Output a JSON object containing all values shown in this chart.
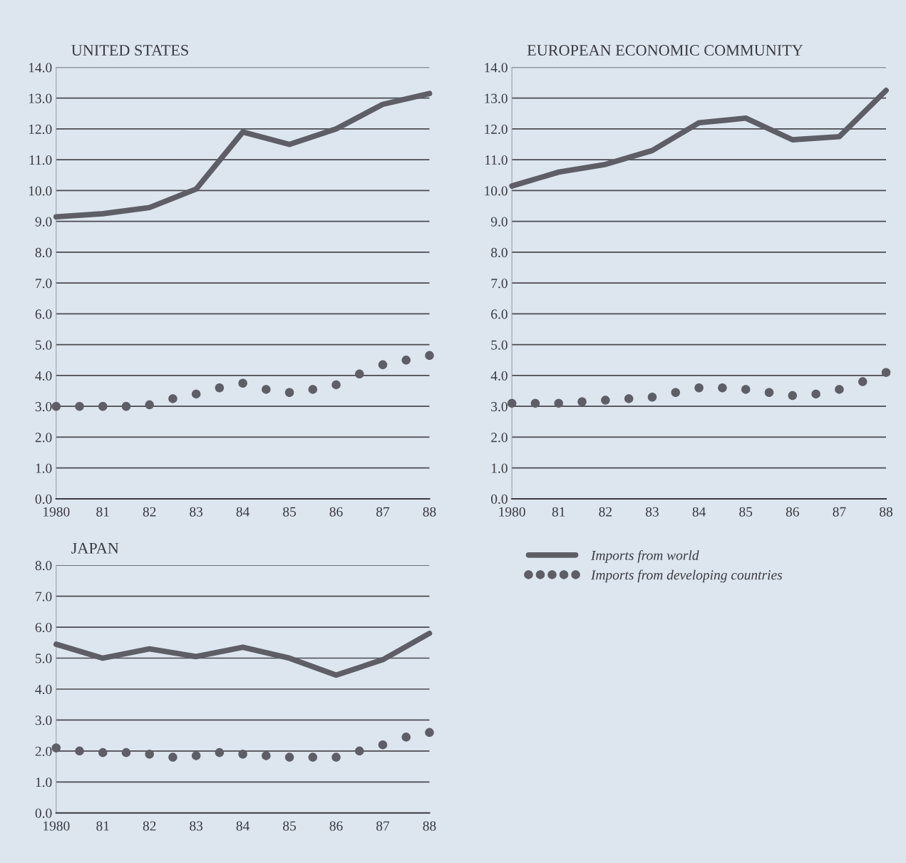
{
  "chart_data": [
    {
      "type": "line",
      "title": "UNITED STATES",
      "xlim": [
        1980,
        1988
      ],
      "xticks": [
        {
          "value": 1980,
          "label": "1980"
        },
        {
          "value": 1981,
          "label": "81"
        },
        {
          "value": 1982,
          "label": "82"
        },
        {
          "value": 1983,
          "label": "83"
        },
        {
          "value": 1984,
          "label": "84"
        },
        {
          "value": 1985,
          "label": "85"
        },
        {
          "value": 1986,
          "label": "86"
        },
        {
          "value": 1987,
          "label": "87"
        },
        {
          "value": 1988,
          "label": "88"
        }
      ],
      "ylim": [
        0,
        14
      ],
      "yticks": [
        {
          "value": 0,
          "label": "0.0"
        },
        {
          "value": 1,
          "label": "1.0"
        },
        {
          "value": 2,
          "label": "2.0"
        },
        {
          "value": 3,
          "label": "3.0"
        },
        {
          "value": 4,
          "label": "4.0"
        },
        {
          "value": 5,
          "label": "5.0"
        },
        {
          "value": 6,
          "label": "6.0"
        },
        {
          "value": 7,
          "label": "7.0"
        },
        {
          "value": 8,
          "label": "8.0"
        },
        {
          "value": 9,
          "label": "9.0"
        },
        {
          "value": 10,
          "label": "10.0"
        },
        {
          "value": 11,
          "label": "11.0"
        },
        {
          "value": 12,
          "label": "12.0"
        },
        {
          "value": 13,
          "label": "13.0"
        },
        {
          "value": 14,
          "label": "14.0"
        }
      ],
      "grid": "y",
      "legend": false,
      "series": [
        {
          "color": "#5e5e66",
          "line_style": "solid",
          "x": [
            1980,
            1981,
            1982,
            1983,
            1984,
            1985,
            1986,
            1987,
            1988
          ],
          "values": [
            9.15,
            9.25,
            9.45,
            10.05,
            11.9,
            11.5,
            12.0,
            12.8,
            13.15
          ]
        },
        {
          "type": "scatter",
          "marker": "circle",
          "color": "#5e5e66",
          "x": [
            1980,
            1980.5,
            1981,
            1981.5,
            1982,
            1982.5,
            1983,
            1983.5,
            1984,
            1984.5,
            1985,
            1985.5,
            1986,
            1986.5,
            1987,
            1987.5,
            1988
          ],
          "values": [
            3.0,
            3.0,
            3.0,
            3.0,
            3.05,
            3.25,
            3.4,
            3.6,
            3.75,
            3.55,
            3.45,
            3.55,
            3.7,
            4.05,
            4.35,
            4.5,
            4.65
          ]
        }
      ]
    },
    {
      "type": "line",
      "title": "EUROPEAN ECONOMIC COMMUNITY",
      "xlim": [
        1980,
        1988
      ],
      "xticks": [
        {
          "value": 1980,
          "label": "1980"
        },
        {
          "value": 1981,
          "label": "81"
        },
        {
          "value": 1982,
          "label": "82"
        },
        {
          "value": 1983,
          "label": "83"
        },
        {
          "value": 1984,
          "label": "84"
        },
        {
          "value": 1985,
          "label": "85"
        },
        {
          "value": 1986,
          "label": "86"
        },
        {
          "value": 1987,
          "label": "87"
        },
        {
          "value": 1988,
          "label": "88"
        }
      ],
      "ylim": [
        0,
        14
      ],
      "yticks": [
        {
          "value": 0,
          "label": "0.0"
        },
        {
          "value": 1,
          "label": "1.0"
        },
        {
          "value": 2,
          "label": "2.0"
        },
        {
          "value": 3,
          "label": "3.0"
        },
        {
          "value": 4,
          "label": "4.0"
        },
        {
          "value": 5,
          "label": "5.0"
        },
        {
          "value": 6,
          "label": "6.0"
        },
        {
          "value": 7,
          "label": "7.0"
        },
        {
          "value": 8,
          "label": "8.0"
        },
        {
          "value": 9,
          "label": "9.0"
        },
        {
          "value": 10,
          "label": "10.0"
        },
        {
          "value": 11,
          "label": "11.0"
        },
        {
          "value": 12,
          "label": "12.0"
        },
        {
          "value": 13,
          "label": "13.0"
        },
        {
          "value": 14,
          "label": "14.0"
        }
      ],
      "grid": "y",
      "legend": "bottom",
      "series": [
        {
          "name": "Imports from world",
          "color": "#5e5e66",
          "line_style": "solid",
          "x": [
            1980,
            1981,
            1982,
            1983,
            1984,
            1985,
            1986,
            1987,
            1988
          ],
          "values": [
            10.15,
            10.6,
            10.85,
            11.3,
            12.2,
            12.35,
            11.65,
            11.75,
            13.25
          ]
        },
        {
          "name": "Imports from developing countries",
          "type": "scatter",
          "marker": "circle",
          "color": "#5e5e66",
          "x": [
            1980,
            1980.5,
            1981,
            1981.5,
            1982,
            1982.5,
            1983,
            1983.5,
            1984,
            1984.5,
            1985,
            1985.5,
            1986,
            1986.5,
            1987,
            1987.5,
            1988
          ],
          "values": [
            3.1,
            3.1,
            3.1,
            3.15,
            3.2,
            3.25,
            3.3,
            3.45,
            3.6,
            3.6,
            3.55,
            3.45,
            3.35,
            3.4,
            3.55,
            3.8,
            4.1
          ]
        }
      ]
    },
    {
      "type": "line",
      "title": "JAPAN",
      "xlim": [
        1980,
        1988
      ],
      "xticks": [
        {
          "value": 1980,
          "label": "1980"
        },
        {
          "value": 1981,
          "label": "81"
        },
        {
          "value": 1982,
          "label": "82"
        },
        {
          "value": 1983,
          "label": "83"
        },
        {
          "value": 1984,
          "label": "84"
        },
        {
          "value": 1985,
          "label": "85"
        },
        {
          "value": 1986,
          "label": "86"
        },
        {
          "value": 1987,
          "label": "87"
        },
        {
          "value": 1988,
          "label": "88"
        }
      ],
      "ylim": [
        0,
        8
      ],
      "yticks": [
        {
          "value": 0,
          "label": "0.0"
        },
        {
          "value": 1,
          "label": "1.0"
        },
        {
          "value": 2,
          "label": "2.0"
        },
        {
          "value": 3,
          "label": "3.0"
        },
        {
          "value": 4,
          "label": "4.0"
        },
        {
          "value": 5,
          "label": "5.0"
        },
        {
          "value": 6,
          "label": "6.0"
        },
        {
          "value": 7,
          "label": "7.0"
        },
        {
          "value": 8,
          "label": "8.0"
        }
      ],
      "grid": "y",
      "legend": false,
      "series": [
        {
          "color": "#5e5e66",
          "line_style": "solid",
          "x": [
            1980,
            1981,
            1982,
            1983,
            1984,
            1985,
            1986,
            1987,
            1988
          ],
          "values": [
            5.45,
            5.0,
            5.3,
            5.05,
            5.35,
            5.0,
            4.45,
            4.95,
            5.8
          ]
        },
        {
          "type": "scatter",
          "marker": "circle",
          "color": "#5e5e66",
          "x": [
            1980,
            1980.5,
            1981,
            1981.5,
            1982,
            1982.5,
            1983,
            1983.5,
            1984,
            1984.5,
            1985,
            1985.5,
            1986,
            1986.5,
            1987,
            1987.5,
            1988
          ],
          "values": [
            2.1,
            2.0,
            1.95,
            1.95,
            1.9,
            1.8,
            1.85,
            1.95,
            1.9,
            1.85,
            1.8,
            1.8,
            1.8,
            2.0,
            2.2,
            2.45,
            2.6
          ]
        }
      ]
    }
  ]
}
